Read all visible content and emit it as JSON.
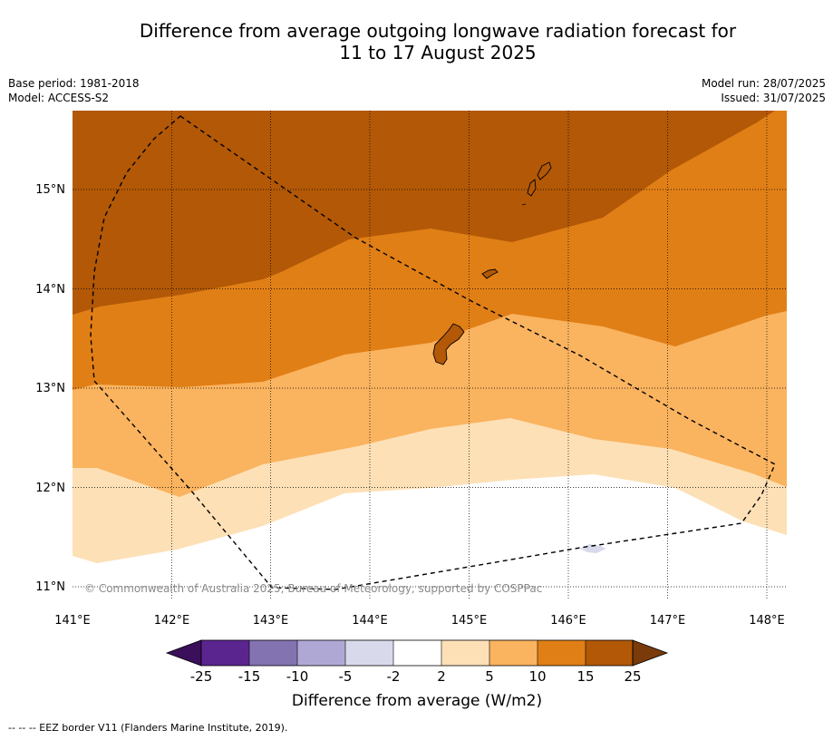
{
  "title_line1": "Difference from average outgoing longwave radiation forecast for",
  "title_line2": "11 to 17 August 2025",
  "base_period": "Base period: 1981-2018",
  "model": "Model: ACCESS-S2",
  "model_run": "Model run: 28/07/2025",
  "issued": "Issued: 31/07/2025",
  "copyright": "© Commonwealth of Australia 2025, Bureau of Meteorology, supported by COSPPac",
  "lat_labels": [
    "15°N",
    "14°N",
    "13°N",
    "12°N",
    "11°N"
  ],
  "lon_labels": [
    "141°E",
    "142°E",
    "143°E",
    "144°E",
    "145°E",
    "146°E",
    "147°E",
    "148°E"
  ],
  "colorbar": {
    "ticks": [
      "-25",
      "-15",
      "-10",
      "-5",
      "-2",
      "2",
      "5",
      "10",
      "15",
      "25"
    ],
    "label": "Difference from average (W/m2)",
    "colors": [
      "#3b0f5a",
      "#5b2590",
      "#8373b0",
      "#b0a8d4",
      "#d9d9ec",
      "#ffffff",
      "#fde0b6",
      "#fab35f",
      "#e07f16",
      "#b25806",
      "#7a3a0a"
    ]
  },
  "band_colors": {
    "15_to_25": "#b25806",
    "10_to_15": "#e07f16",
    "5_to_10": "#fab35f",
    "2_to_5": "#fde0b6",
    "neg2_to_2": "#ffffff",
    "neg5_to_neg2": "#d9d9ec"
  },
  "footnote": "--  --  -- EEZ border V11 (Flanders Marine Institute, 2019)."
}
